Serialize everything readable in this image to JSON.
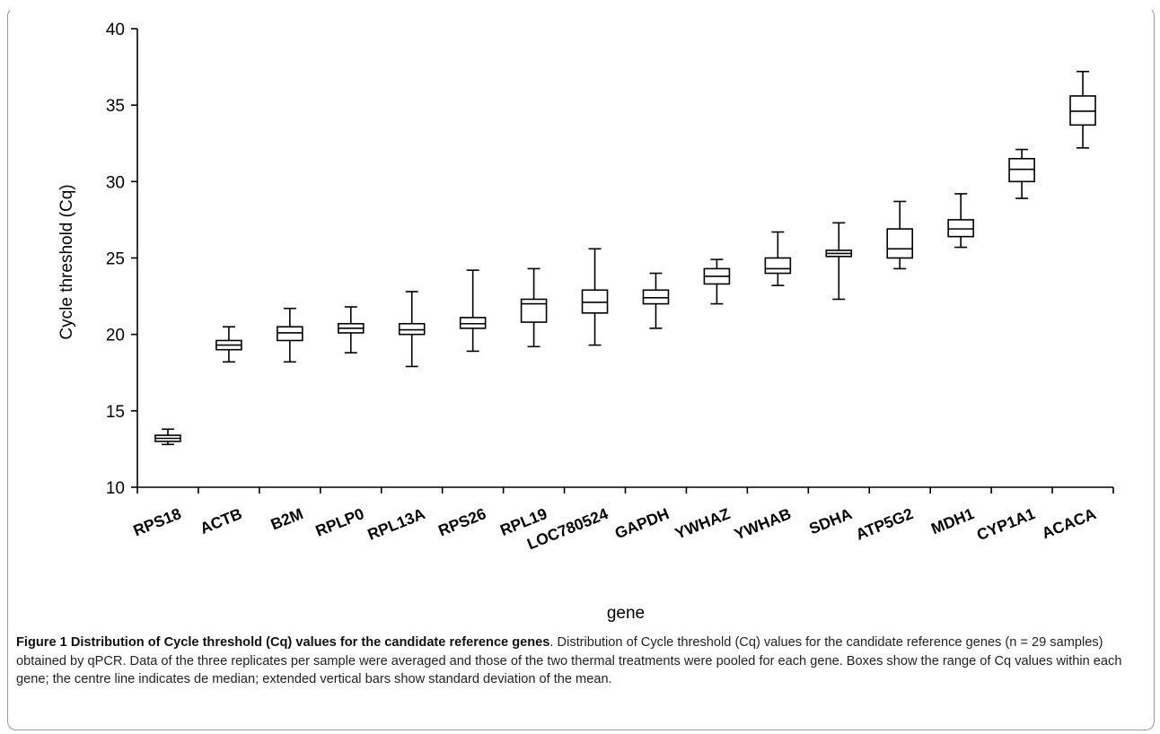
{
  "chart_data": {
    "type": "box",
    "ylabel": "Cycle threshold (Cq)",
    "xlabel": "gene",
    "ylim": [
      10,
      40
    ],
    "yticks": [
      10,
      15,
      20,
      25,
      30,
      35,
      40
    ],
    "grid": false,
    "categories": [
      "RPS18",
      "ACTB",
      "B2M",
      "RPLP0",
      "RPL13A",
      "RPS26",
      "RPL19",
      "LOC780524",
      "GAPDH",
      "YWHAZ",
      "YWHAB",
      "SDHA",
      "ATP5G2",
      "MDH1",
      "CYP1A1",
      "ACACA"
    ],
    "series": [
      {
        "whisker_low": [
          12.8,
          18.2,
          18.2,
          18.8,
          17.9,
          18.9,
          19.2,
          19.3,
          20.4,
          22.0,
          23.2,
          22.3,
          24.3,
          25.7,
          28.9,
          32.2
        ],
        "q1": [
          13.0,
          19.0,
          19.6,
          20.1,
          20.0,
          20.4,
          20.8,
          21.4,
          22.0,
          23.3,
          24.0,
          25.1,
          25.0,
          26.4,
          30.0,
          33.7
        ],
        "median": [
          13.2,
          19.3,
          20.1,
          20.4,
          20.3,
          20.7,
          22.0,
          22.1,
          22.4,
          23.8,
          24.3,
          25.3,
          25.6,
          26.9,
          30.8,
          34.6
        ],
        "q3": [
          13.4,
          19.6,
          20.5,
          20.7,
          20.7,
          21.1,
          22.3,
          22.9,
          22.9,
          24.3,
          25.0,
          25.5,
          26.9,
          27.5,
          31.5,
          35.6
        ],
        "whisker_high": [
          13.8,
          20.5,
          21.7,
          21.8,
          22.8,
          24.2,
          24.3,
          25.6,
          24.0,
          24.9,
          26.7,
          27.3,
          28.7,
          29.2,
          32.1,
          37.2
        ]
      }
    ]
  },
  "caption": {
    "label": "Figure 1 Distribution of Cycle threshold (Cq) values for the candidate reference genes",
    "text": ". Distribution of Cycle threshold (Cq) values for the candidate reference genes (n = 29 samples) obtained by qPCR. Data of the three replicates per sample were averaged and those of the two thermal treatments were pooled for each gene. Boxes show the range of Cq values within each gene; the centre line indicates de median; extended vertical bars show standard deviation of the mean."
  }
}
